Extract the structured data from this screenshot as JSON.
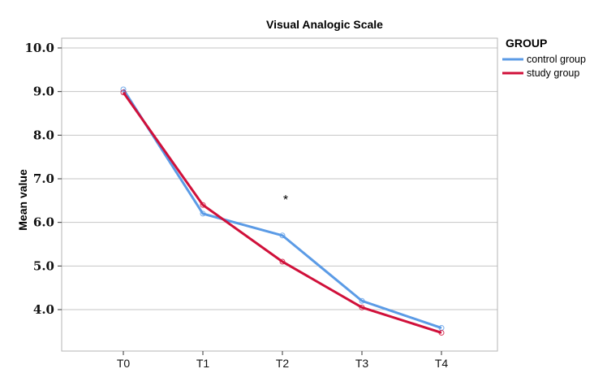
{
  "chart_data": {
    "type": "line",
    "title": "Visual Analogic Scale",
    "xlabel": "",
    "ylabel": "Mean value",
    "categories": [
      "T0",
      "T1",
      "T2",
      "T3",
      "T4"
    ],
    "yticks": [
      "4.0",
      "5.0",
      "6.0",
      "7.0",
      "8.0",
      "9.0",
      "10.0"
    ],
    "ylim": [
      3.0,
      10.3
    ],
    "grid": "horizontal",
    "legend_title": "GROUP",
    "legend_position": "top-right",
    "annotation": "*",
    "series": [
      {
        "name": "control group",
        "color": "#5b9be6",
        "values": [
          9.05,
          6.2,
          5.7,
          4.2,
          3.58
        ]
      },
      {
        "name": "study group",
        "color": "#d0103a",
        "values": [
          8.98,
          6.4,
          5.1,
          4.05,
          3.47
        ]
      }
    ]
  }
}
